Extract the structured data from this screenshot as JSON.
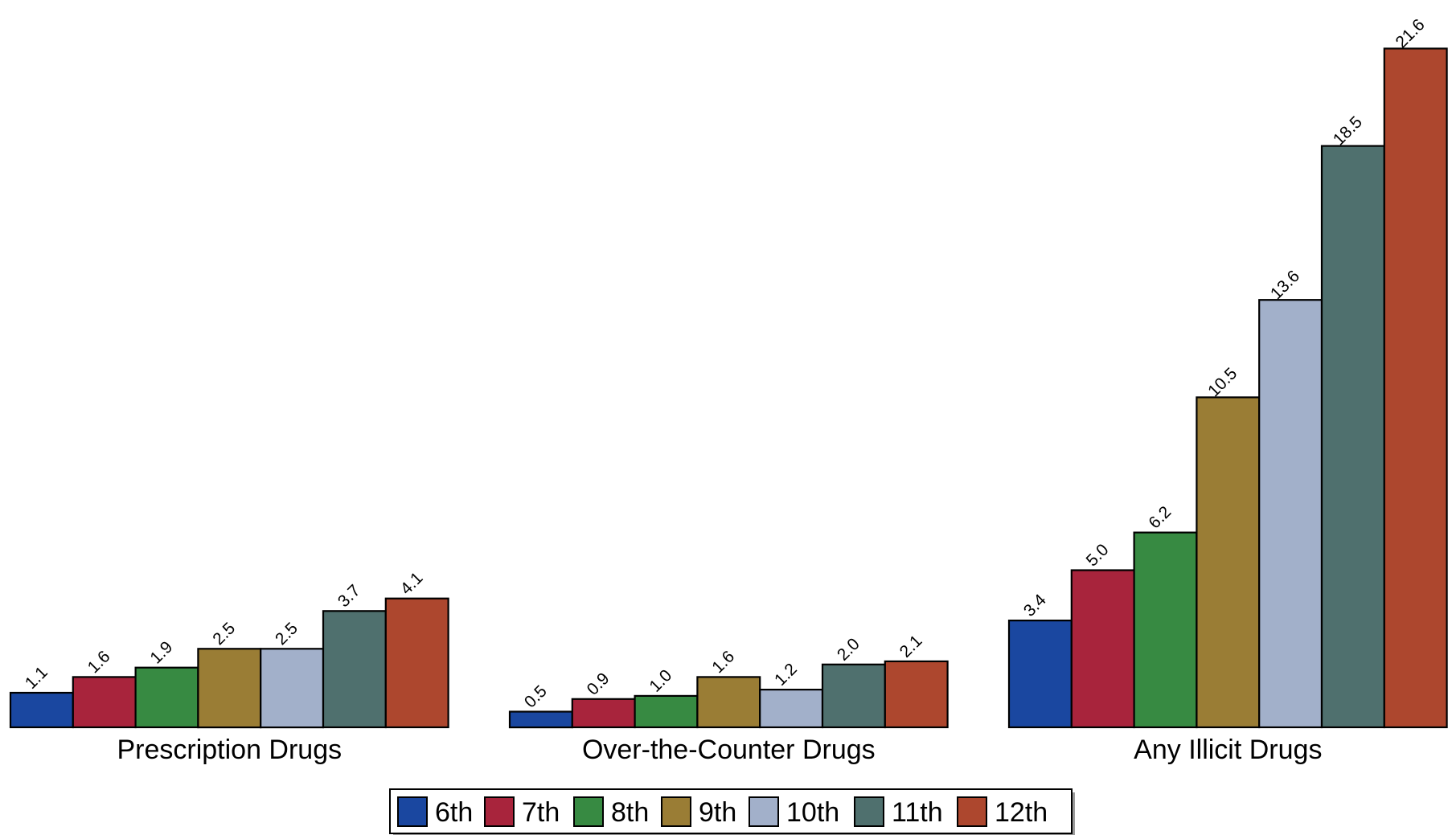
{
  "chart_data": {
    "type": "bar",
    "title": "",
    "xlabel": "",
    "ylabel": "",
    "ylim": [
      0,
      22
    ],
    "grid": false,
    "legend_position": "bottom",
    "categories": [
      "Prescription Drugs",
      "Over-the-Counter Drugs",
      "Any Illicit Drugs"
    ],
    "series": [
      {
        "name": "6th",
        "color": "#1a47a0",
        "values": [
          1.1,
          0.5,
          3.4
        ]
      },
      {
        "name": "7th",
        "color": "#a8243c",
        "values": [
          1.6,
          0.9,
          5.0
        ]
      },
      {
        "name": "8th",
        "color": "#378a42",
        "values": [
          1.9,
          1.0,
          6.2
        ]
      },
      {
        "name": "9th",
        "color": "#9a7d35",
        "values": [
          2.5,
          1.6,
          10.5
        ]
      },
      {
        "name": "10th",
        "color": "#a2b0ca",
        "values": [
          2.5,
          1.2,
          13.6
        ]
      },
      {
        "name": "11th",
        "color": "#4f706e",
        "values": [
          3.7,
          2.0,
          18.5
        ]
      },
      {
        "name": "12th",
        "color": "#ad472e",
        "values": [
          4.1,
          2.1,
          21.6
        ]
      }
    ],
    "data_labels": [
      [
        "1.1",
        "1.6",
        "1.9",
        "2.5",
        "2.5",
        "3.7",
        "4.1"
      ],
      [
        "0.5",
        "0.9",
        "1.0",
        "1.6",
        "1.2",
        "2.0",
        "2.1"
      ],
      [
        "3.4",
        "5.0",
        "6.2",
        "10.5",
        "13.6",
        "18.5",
        "21.6"
      ]
    ]
  }
}
